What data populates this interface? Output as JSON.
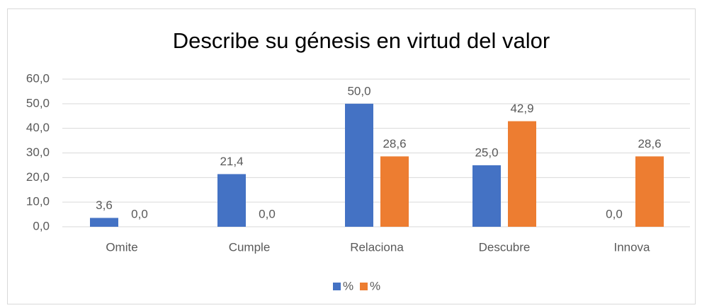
{
  "chart_data": {
    "type": "bar",
    "title": "Describe su génesis en virtud del valor",
    "categories": [
      "Omite",
      "Cumple",
      "Relaciona",
      "Descubre",
      "Innova"
    ],
    "series": [
      {
        "name": "%",
        "color": "#4472c4",
        "values": [
          3.6,
          21.4,
          50.0,
          25.0,
          0.0
        ],
        "value_labels": [
          "3,6",
          "21,4",
          "50,0",
          "25,0",
          "0,0"
        ]
      },
      {
        "name": "%",
        "color": "#ed7d31",
        "values": [
          0.0,
          0.0,
          28.6,
          42.9,
          28.6
        ],
        "value_labels": [
          "0,0",
          "0,0",
          "28,6",
          "42,9",
          "28,6"
        ]
      }
    ],
    "ylim": [
      0,
      60
    ],
    "yticks": [
      {
        "value": 0,
        "label": "0,0"
      },
      {
        "value": 10,
        "label": "10,0"
      },
      {
        "value": 20,
        "label": "20,0"
      },
      {
        "value": 30,
        "label": "30,0"
      },
      {
        "value": 40,
        "label": "40,0"
      },
      {
        "value": 50,
        "label": "50,0"
      },
      {
        "value": 60,
        "label": "60,0"
      }
    ],
    "grid": true,
    "legend": "bottom"
  }
}
